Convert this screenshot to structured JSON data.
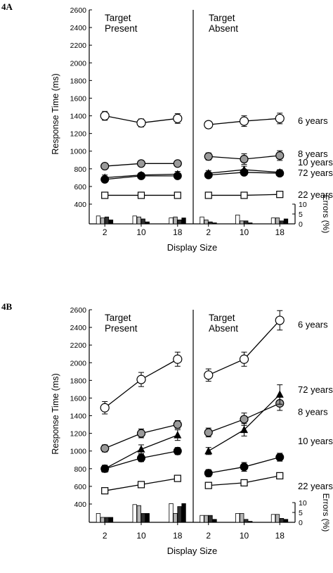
{
  "chart_data": [
    {
      "type": "line",
      "panel_label": "4A",
      "ylabel": "Response Time (ms)",
      "xlabel": "Display Size",
      "y2label": "Errors (%)",
      "ylim": [
        400,
        2600
      ],
      "yticks": [
        400,
        600,
        800,
        1000,
        1200,
        1400,
        1600,
        1800,
        2000,
        2200,
        2400,
        2600
      ],
      "y2ticks": [
        0,
        5,
        10
      ],
      "categories": [
        "2",
        "10",
        "18"
      ],
      "subpanels": [
        {
          "title": [
            "Target",
            "Present"
          ],
          "series": [
            {
              "values": [
                1400,
                1320,
                1370
              ],
              "errors": [
                50,
                45,
                55
              ]
            },
            {
              "values": [
                830,
                860,
                860
              ],
              "errors": [
                30,
                30,
                30
              ]
            },
            {
              "values": [
                700,
                730,
                740
              ],
              "errors": [
                30,
                25,
                30
              ]
            },
            {
              "values": [
                680,
                720,
                720
              ],
              "errors": [
                25,
                20,
                20
              ]
            },
            {
              "values": [
                500,
                500,
                500
              ],
              "errors": [
                10,
                10,
                10
              ]
            }
          ],
          "error_bars": [
            [
              4,
              3,
              3.5,
              2
            ],
            [
              4,
              3.5,
              2.5,
              1
            ],
            [
              3,
              3.5,
              2,
              3
            ]
          ]
        },
        {
          "title": [
            "Target",
            "Absent"
          ],
          "series": [
            {
              "values": [
                1300,
                1340,
                1370
              ],
              "errors": [
                40,
                60,
                60
              ]
            },
            {
              "values": [
                940,
                910,
                950
              ],
              "errors": [
                40,
                60,
                55
              ]
            },
            {
              "values": [
                750,
                790,
                760
              ],
              "errors": [
                30,
                40,
                30
              ]
            },
            {
              "values": [
                730,
                760,
                750
              ],
              "errors": [
                25,
                30,
                25
              ]
            },
            {
              "values": [
                500,
                500,
                510
              ],
              "errors": [
                10,
                10,
                10
              ]
            }
          ],
          "error_bars": [
            [
              3.5,
              2,
              1,
              0.5
            ],
            [
              4.5,
              1.5,
              1.5,
              0.5
            ],
            [
              3,
              3,
              1.5,
              2.5
            ]
          ]
        }
      ],
      "series_labels": [
        "6 years",
        "8 years",
        "10 years",
        "72 years",
        "22 years"
      ]
    },
    {
      "type": "line",
      "panel_label": "4B",
      "ylabel": "Response Time (ms)",
      "xlabel": "Display Size",
      "y2label": "Errors (%)",
      "ylim": [
        400,
        2600
      ],
      "yticks": [
        400,
        600,
        800,
        1000,
        1200,
        1400,
        1600,
        1800,
        2000,
        2200,
        2400,
        2600
      ],
      "y2ticks": [
        0,
        5,
        10
      ],
      "categories": [
        "2",
        "10",
        "18"
      ],
      "subpanels": [
        {
          "title": [
            "Target",
            "Present"
          ],
          "series": [
            {
              "values": [
                1490,
                1810,
                2040
              ],
              "errors": [
                70,
                80,
                80
              ]
            },
            {
              "values": [
                1030,
                1200,
                1300
              ],
              "errors": [
                40,
                50,
                45
              ]
            },
            {
              "values": [
                800,
                1020,
                1180
              ],
              "errors": [
                40,
                50,
                60
              ]
            },
            {
              "values": [
                800,
                920,
                1000
              ],
              "errors": [
                35,
                40,
                40
              ]
            },
            {
              "values": [
                550,
                620,
                690
              ],
              "errors": [
                10,
                10,
                10
              ]
            }
          ],
          "error_bars": [
            [
              4.5,
              2.5,
              2.5,
              2.5
            ],
            [
              9,
              8.5,
              4.5,
              4.5
            ],
            [
              9.5,
              4.5,
              8,
              9.5
            ]
          ]
        },
        {
          "title": [
            "Target",
            "Absent"
          ],
          "series": [
            {
              "values": [
                1860,
                2040,
                2480
              ],
              "errors": [
                70,
                80,
                110
              ]
            },
            {
              "values": [
                1210,
                1360,
                1540
              ],
              "errors": [
                50,
                70,
                80
              ]
            },
            {
              "values": [
                1000,
                1240,
                1640
              ],
              "errors": [
                40,
                70,
                110
              ]
            },
            {
              "values": [
                750,
                820,
                930
              ],
              "errors": [
                40,
                50,
                45
              ]
            },
            {
              "values": [
                610,
                640,
                720
              ],
              "errors": [
                10,
                10,
                10
              ]
            }
          ],
          "error_bars": [
            [
              3.5,
              3.5,
              3.5,
              1.5
            ],
            [
              4.5,
              4.5,
              1.5,
              0.5
            ],
            [
              4,
              4,
              2,
              1.5
            ]
          ]
        }
      ],
      "series_labels": [
        "6 years",
        "72 years",
        "8 years",
        "10 years",
        "22 years"
      ]
    }
  ],
  "styles": {
    "markers": [
      "open-circle",
      "gray-circle",
      "filled-triangle",
      "filled-circle",
      "open-square"
    ],
    "ink": "#000000",
    "gray_fill": "#9a9a9a",
    "bar_fills": [
      "#ffffff",
      "#b5b5b5",
      "#2f2f2f",
      "#000000"
    ]
  }
}
